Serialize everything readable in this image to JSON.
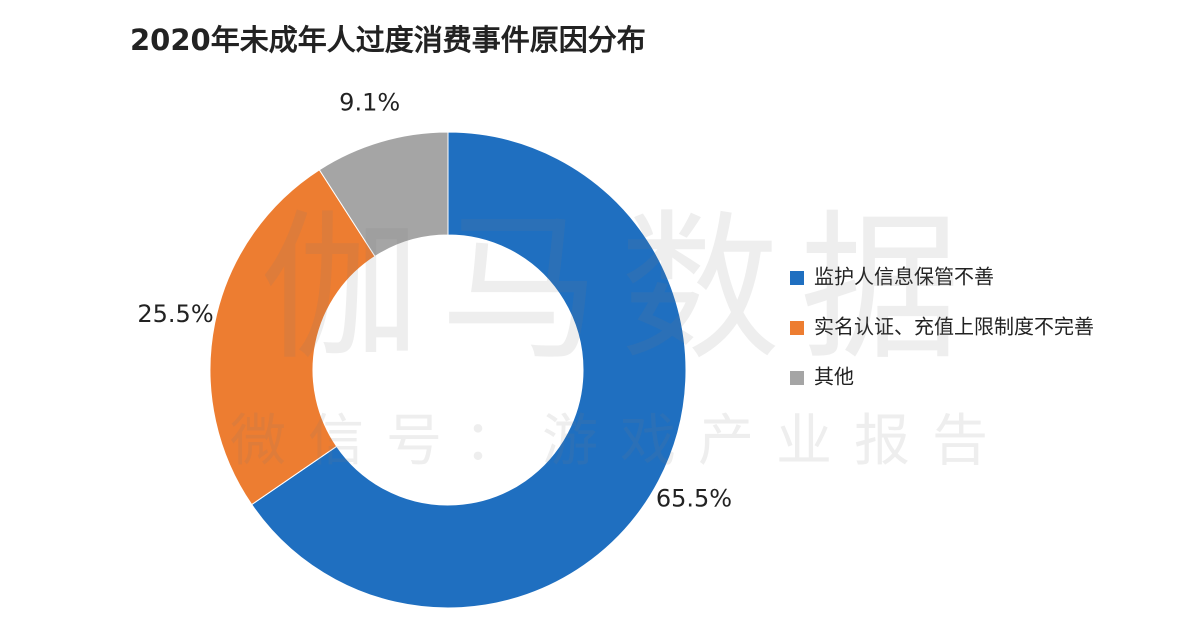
{
  "chart_data": {
    "type": "donut",
    "title": "2020年未成年人过度消费事件原因分布",
    "categories": [
      "监护人信息保管不善",
      "实名认证、充值上限制度不完善",
      "其他"
    ],
    "values": [
      65.5,
      25.5,
      9.1
    ],
    "value_labels": [
      "65.5%",
      "25.5%",
      "9.1%"
    ],
    "colors": [
      "#1f6fc0",
      "#ed7d31",
      "#a5a5a5"
    ],
    "legend": "right",
    "watermark": [
      "伽马数据",
      "微信号：游戏产业报告"
    ]
  }
}
